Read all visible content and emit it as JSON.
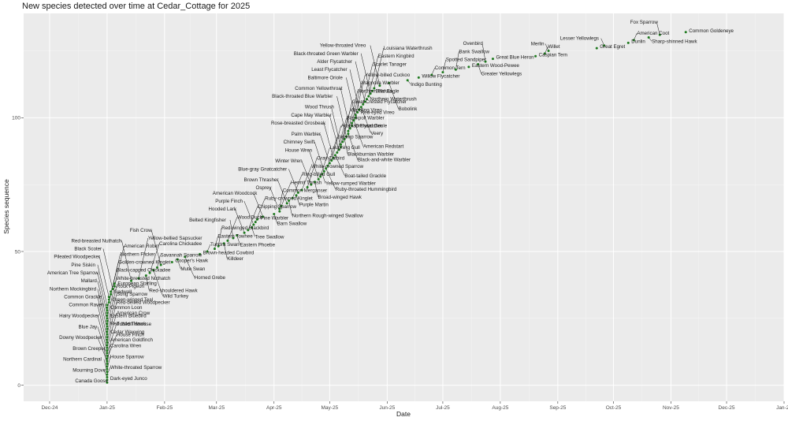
{
  "chart_data": {
    "type": "scatter",
    "title": "New species detected over time at Cedar_Cottage for 2025",
    "xlabel": "Date",
    "ylabel": "Species sequence",
    "x_ticks": [
      "Dec-24",
      "Jan-25",
      "Feb-25",
      "Mar-25",
      "Apr-25",
      "May-25",
      "Jun-25",
      "Jul-25",
      "Aug-25",
      "Sep-25",
      "Oct-25",
      "Nov-25",
      "Dec-25",
      "Jan-26"
    ],
    "y_ticks": [
      0,
      50,
      100
    ],
    "ylim": [
      -6,
      139
    ],
    "grid": true,
    "point_color": "#1f7a1f",
    "background": "#ebebeb",
    "series": [
      {
        "points": [
          {
            "date": "2025-01-01",
            "seq": 1,
            "label": "Canada Goose"
          },
          {
            "date": "2025-01-01",
            "seq": 2,
            "label": "Dark-eyed Junco"
          },
          {
            "date": "2025-01-01",
            "seq": 3,
            "label": "Mourning Dove"
          },
          {
            "date": "2025-01-01",
            "seq": 4,
            "label": "White-throated Sparrow"
          },
          {
            "date": "2025-01-01",
            "seq": 5,
            "label": "Northern Cardinal"
          },
          {
            "date": "2025-01-01",
            "seq": 6,
            "label": "House Sparrow"
          },
          {
            "date": "2025-01-01",
            "seq": 7,
            "label": "Brown Creeper"
          },
          {
            "date": "2025-01-01",
            "seq": 8,
            "label": "Carolina Wren"
          },
          {
            "date": "2025-01-01",
            "seq": 9,
            "label": "Downy Woodpecker"
          },
          {
            "date": "2025-01-01",
            "seq": 10,
            "label": "House Finch"
          },
          {
            "date": "2025-01-01",
            "seq": 11,
            "label": "Blue Jay"
          },
          {
            "date": "2025-01-01",
            "seq": 12,
            "label": "Tufted Titmouse"
          },
          {
            "date": "2025-01-01",
            "seq": 13,
            "label": "Hairy Woodpecker"
          },
          {
            "date": "2025-01-01",
            "seq": 14,
            "label": "American Crow"
          },
          {
            "date": "2025-01-01",
            "seq": 15,
            "label": "Common Raven"
          },
          {
            "date": "2025-01-01",
            "seq": 16,
            "label": "Red-bellied Woodpecker"
          },
          {
            "date": "2025-01-01",
            "seq": 17,
            "label": "American Goldfinch"
          },
          {
            "date": "2025-01-01",
            "seq": 18,
            "label": "Common Grackle"
          },
          {
            "date": "2025-01-01",
            "seq": 19,
            "label": "Song Sparrow"
          },
          {
            "date": "2025-01-01",
            "seq": 20,
            "label": "Cedar Waxwing"
          },
          {
            "date": "2025-01-01",
            "seq": 21,
            "label": "Northern Mockingbird"
          },
          {
            "date": "2025-01-01",
            "seq": 22,
            "label": "Rock Pigeon"
          },
          {
            "date": "2025-01-01",
            "seq": 23,
            "label": "Red-tailed Hawk"
          },
          {
            "date": "2025-01-01",
            "seq": 24,
            "label": "Mallard"
          },
          {
            "date": "2025-01-01",
            "seq": 25,
            "label": "White-breasted Nuthatch"
          },
          {
            "date": "2025-01-01",
            "seq": 26,
            "label": "Eastern Bluebird"
          },
          {
            "date": "2025-01-01",
            "seq": 27,
            "label": "American Tree Sparrow"
          },
          {
            "date": "2025-01-01",
            "seq": 28,
            "label": "Black-capped Chickadee"
          },
          {
            "date": "2025-01-01",
            "seq": 29,
            "label": "Common Loon"
          },
          {
            "date": "2025-01-01",
            "seq": 30,
            "label": "Pine Siskin"
          },
          {
            "date": "2025-01-02",
            "seq": 31,
            "label": "Golden-crowned Kinglet"
          },
          {
            "date": "2025-01-02",
            "seq": 32,
            "label": "Green-winged Teal"
          },
          {
            "date": "2025-01-02",
            "seq": 33,
            "label": "Pileated Woodpecker"
          },
          {
            "date": "2025-01-03",
            "seq": 34,
            "label": "Northern Flicker"
          },
          {
            "date": "2025-01-03",
            "seq": 35,
            "label": "Gadwall"
          },
          {
            "date": "2025-01-04",
            "seq": 36,
            "label": "Black Scoter"
          },
          {
            "date": "2025-01-05",
            "seq": 37,
            "label": "American Robin"
          },
          {
            "date": "2025-01-05",
            "seq": 38,
            "label": "European Starling"
          },
          {
            "date": "2025-01-14",
            "seq": 39,
            "label": "Red-breasted Nuthatch"
          },
          {
            "date": "2025-01-18",
            "seq": 40,
            "label": "Yellow-bellied Sapsucker"
          },
          {
            "date": "2025-01-22",
            "seq": 41,
            "label": "Red-shouldered Hawk"
          },
          {
            "date": "2025-01-24",
            "seq": 42,
            "label": "Carolina Chickadee"
          },
          {
            "date": "2025-01-26",
            "seq": 43,
            "label": "Wild Turkey"
          },
          {
            "date": "2025-01-28",
            "seq": 44,
            "label": "Savannah Sparrow"
          },
          {
            "date": "2025-01-30",
            "seq": 45,
            "label": "Fish Crow"
          },
          {
            "date": "2025-02-05",
            "seq": 46,
            "label": "Cooper's Hawk"
          },
          {
            "date": "2025-02-08",
            "seq": 47,
            "label": "Mute Swan"
          },
          {
            "date": "2025-02-12",
            "seq": 48,
            "label": "Horned Grebe"
          },
          {
            "date": "2025-02-20",
            "seq": 49,
            "label": "Brown-headed Cowbird"
          },
          {
            "date": "2025-02-24",
            "seq": 50,
            "label": "Tundra Swan"
          },
          {
            "date": "2025-02-28",
            "seq": 51,
            "label": "Eastern Towhee"
          },
          {
            "date": "2025-03-02",
            "seq": 52,
            "label": "Red-winged Blackbird"
          },
          {
            "date": "2025-03-05",
            "seq": 53,
            "label": "Killdeer"
          },
          {
            "date": "2025-03-07",
            "seq": 54,
            "label": "Wood Duck"
          },
          {
            "date": "2025-03-10",
            "seq": 55,
            "label": "Belted Kingfisher"
          },
          {
            "date": "2025-03-12",
            "seq": 56,
            "label": "Eastern Phoebe"
          },
          {
            "date": "2025-03-16",
            "seq": 57,
            "label": "Hooded Lark"
          },
          {
            "date": "2025-03-18",
            "seq": 58,
            "label": "Chipping Sparrow"
          },
          {
            "date": "2025-03-20",
            "seq": 59,
            "label": "Tree Swallow"
          },
          {
            "date": "2025-03-21",
            "seq": 60,
            "label": "Purple Finch"
          },
          {
            "date": "2025-03-22",
            "seq": 61,
            "label": "Ruby-crowned Kinglet"
          },
          {
            "date": "2025-03-23",
            "seq": 62,
            "label": "Pine Warbler"
          },
          {
            "date": "2025-03-26",
            "seq": 63,
            "label": "American Woodcock"
          },
          {
            "date": "2025-04-01",
            "seq": 64,
            "label": "Barn Swallow"
          },
          {
            "date": "2025-04-04",
            "seq": 65,
            "label": "Osprey"
          },
          {
            "date": "2025-04-04",
            "seq": 66,
            "label": "Common Merganser"
          },
          {
            "date": "2025-04-05",
            "seq": 67,
            "label": "Hermit Thrush"
          },
          {
            "date": "2025-04-08",
            "seq": 68,
            "label": "Brown Thrasher"
          },
          {
            "date": "2025-04-09",
            "seq": 69,
            "label": "Northern Rough-winged Swallow"
          },
          {
            "date": "2025-04-11",
            "seq": 70,
            "label": "Ring-billed Gull"
          },
          {
            "date": "2025-04-13",
            "seq": 71,
            "label": "Purple Martin"
          },
          {
            "date": "2025-04-14",
            "seq": 72,
            "label": "Blue-gray Gnatcatcher"
          },
          {
            "date": "2025-04-16",
            "seq": 73,
            "label": "White-crowned Sparrow"
          },
          {
            "date": "2025-04-19",
            "seq": 74,
            "label": "Gray Catbird"
          },
          {
            "date": "2025-04-21",
            "seq": 75,
            "label": "Winter Wren"
          },
          {
            "date": "2025-04-23",
            "seq": 76,
            "label": "Broad-winged Hawk"
          },
          {
            "date": "2025-04-25",
            "seq": 77,
            "label": "House Wren"
          },
          {
            "date": "2025-04-26",
            "seq": 78,
            "label": "Laughing Gull"
          },
          {
            "date": "2025-04-27",
            "seq": 79,
            "label": "Yellow-rumped Warbler"
          },
          {
            "date": "2025-04-28",
            "seq": 80,
            "label": "Chimney Swift"
          },
          {
            "date": "2025-04-29",
            "seq": 81,
            "label": "Ruby-throated Hummingbird"
          },
          {
            "date": "2025-04-30",
            "seq": 82,
            "label": "Swamp Sparrow"
          },
          {
            "date": "2025-05-01",
            "seq": 83,
            "label": "Palm Warbler"
          },
          {
            "date": "2025-05-02",
            "seq": 84,
            "label": "Acadian Flycatcher"
          },
          {
            "date": "2025-05-03",
            "seq": 85,
            "label": "Rose-breasted Grosbeak"
          },
          {
            "date": "2025-05-04",
            "seq": 86,
            "label": "Boat-tailed Grackle"
          },
          {
            "date": "2025-05-05",
            "seq": 87,
            "label": "Blackpoll Warbler"
          },
          {
            "date": "2025-05-06",
            "seq": 88,
            "label": "Cape May Warbler"
          },
          {
            "date": "2025-05-07",
            "seq": 89,
            "label": "Wood Thrush"
          },
          {
            "date": "2025-05-07",
            "seq": 90,
            "label": "Warbling Vireo"
          },
          {
            "date": "2025-05-08",
            "seq": 91,
            "label": "Great Crested Flycatcher"
          },
          {
            "date": "2025-05-09",
            "seq": 92,
            "label": "Blackburnian Warbler"
          },
          {
            "date": "2025-05-10",
            "seq": 93,
            "label": "Black-throated Blue Warbler"
          },
          {
            "date": "2025-05-11",
            "seq": 94,
            "label": "Black-and-white Warbler"
          },
          {
            "date": "2025-05-11",
            "seq": 95,
            "label": "Northern Parula"
          },
          {
            "date": "2025-05-12",
            "seq": 96,
            "label": "Common Yellowthroat"
          },
          {
            "date": "2025-05-13",
            "seq": 97,
            "label": "Orchard Oriole"
          },
          {
            "date": "2025-05-13",
            "seq": 98,
            "label": "Magnolia Warbler"
          },
          {
            "date": "2025-05-14",
            "seq": 99,
            "label": "American Redstart"
          },
          {
            "date": "2025-05-15",
            "seq": 100,
            "label": "Baltimore Oriole"
          },
          {
            "date": "2025-05-15",
            "seq": 101,
            "label": "Yellow-billed Cuckoo"
          },
          {
            "date": "2025-05-16",
            "seq": 102,
            "label": "Red-eyed Vireo"
          },
          {
            "date": "2025-05-17",
            "seq": 103,
            "label": "Least Flycatcher"
          },
          {
            "date": "2025-05-18",
            "seq": 104,
            "label": "Veery"
          },
          {
            "date": "2025-05-19",
            "seq": 105,
            "label": "Scarlet Tanager"
          },
          {
            "date": "2025-05-20",
            "seq": 106,
            "label": "Alder Flycatcher"
          },
          {
            "date": "2025-05-21",
            "seq": 107,
            "label": "Northern Waterthrush"
          },
          {
            "date": "2025-05-22",
            "seq": 108,
            "label": "Eastern Kingbird"
          },
          {
            "date": "2025-05-23",
            "seq": 109,
            "label": "Black-throated Green Warbler"
          },
          {
            "date": "2025-05-24",
            "seq": 110,
            "label": "Bald Eagle"
          },
          {
            "date": "2025-05-25",
            "seq": 111,
            "label": "Louisiana Waterthrush"
          },
          {
            "date": "2025-05-28",
            "seq": 112,
            "label": "Yellow-throated Vireo"
          },
          {
            "date": "2025-06-02",
            "seq": 113,
            "label": "Bobolink"
          },
          {
            "date": "2025-06-12",
            "seq": 114,
            "label": "Indigo Bunting"
          },
          {
            "date": "2025-06-18",
            "seq": 115,
            "label": "Willow Flycatcher"
          },
          {
            "date": "2025-06-25",
            "seq": 116,
            "label": "Common Tern"
          },
          {
            "date": "2025-07-01",
            "seq": 117,
            "label": "Spotted Sandpiper"
          },
          {
            "date": "2025-07-08",
            "seq": 118,
            "label": "Bank Swallow"
          },
          {
            "date": "2025-07-15",
            "seq": 119,
            "label": "Eastern Wood-Pewee"
          },
          {
            "date": "2025-07-20",
            "seq": 120,
            "label": "Greater Yellowlegs"
          },
          {
            "date": "2025-07-24",
            "seq": 121,
            "label": "Ovenbird"
          },
          {
            "date": "2025-07-28",
            "seq": 122,
            "label": "Great Blue Heron"
          },
          {
            "date": "2025-08-20",
            "seq": 123,
            "label": "Caspian Tern"
          },
          {
            "date": "2025-08-25",
            "seq": 124,
            "label": "Willet"
          },
          {
            "date": "2025-08-27",
            "seq": 125,
            "label": "Merlin"
          },
          {
            "date": "2025-09-22",
            "seq": 126,
            "label": "Great Egret"
          },
          {
            "date": "2025-09-26",
            "seq": 127,
            "label": "Lesser Yellowlegs"
          },
          {
            "date": "2025-10-09",
            "seq": 128,
            "label": "Dunlin"
          },
          {
            "date": "2025-10-12",
            "seq": 129,
            "label": "American Coot"
          },
          {
            "date": "2025-10-20",
            "seq": 130,
            "label": "Sharp-shinned Hawk"
          },
          {
            "date": "2025-10-26",
            "seq": 131,
            "label": "Fox Sparrow"
          },
          {
            "date": "2025-11-09",
            "seq": 132,
            "label": "Common Goldeneye"
          }
        ]
      }
    ]
  }
}
